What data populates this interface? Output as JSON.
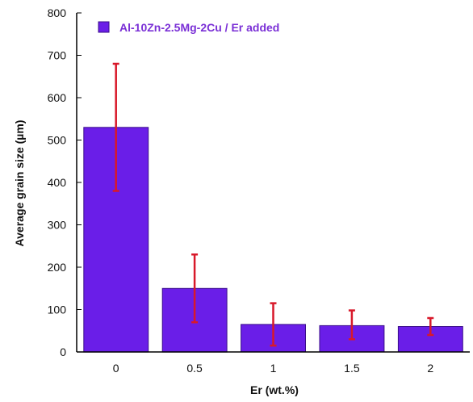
{
  "chart_data": {
    "type": "bar",
    "categories": [
      "0",
      "0.5",
      "1",
      "1.5",
      "2"
    ],
    "series": [
      {
        "name": "Al-10Zn-2.5Mg-2Cu / Er added",
        "values": [
          530,
          150,
          65,
          62,
          60
        ],
        "error_low": [
          380,
          70,
          15,
          30,
          40
        ],
        "error_high": [
          680,
          230,
          115,
          98,
          80
        ]
      }
    ],
    "xlabel": "Er (wt.%)",
    "ylabel": "Average grain size (µm)",
    "ylim": [
      0,
      800
    ],
    "yticks": [
      0,
      100,
      200,
      300,
      400,
      500,
      600,
      700,
      800
    ],
    "grid": false,
    "legend_position": "top-left"
  },
  "colors": {
    "bar_fill": "#6a1ee8",
    "bar_edge": "#3a0d8a",
    "error_bar": "#d8192a",
    "legend_text": "#7a2fd6",
    "axis": "#000000"
  }
}
